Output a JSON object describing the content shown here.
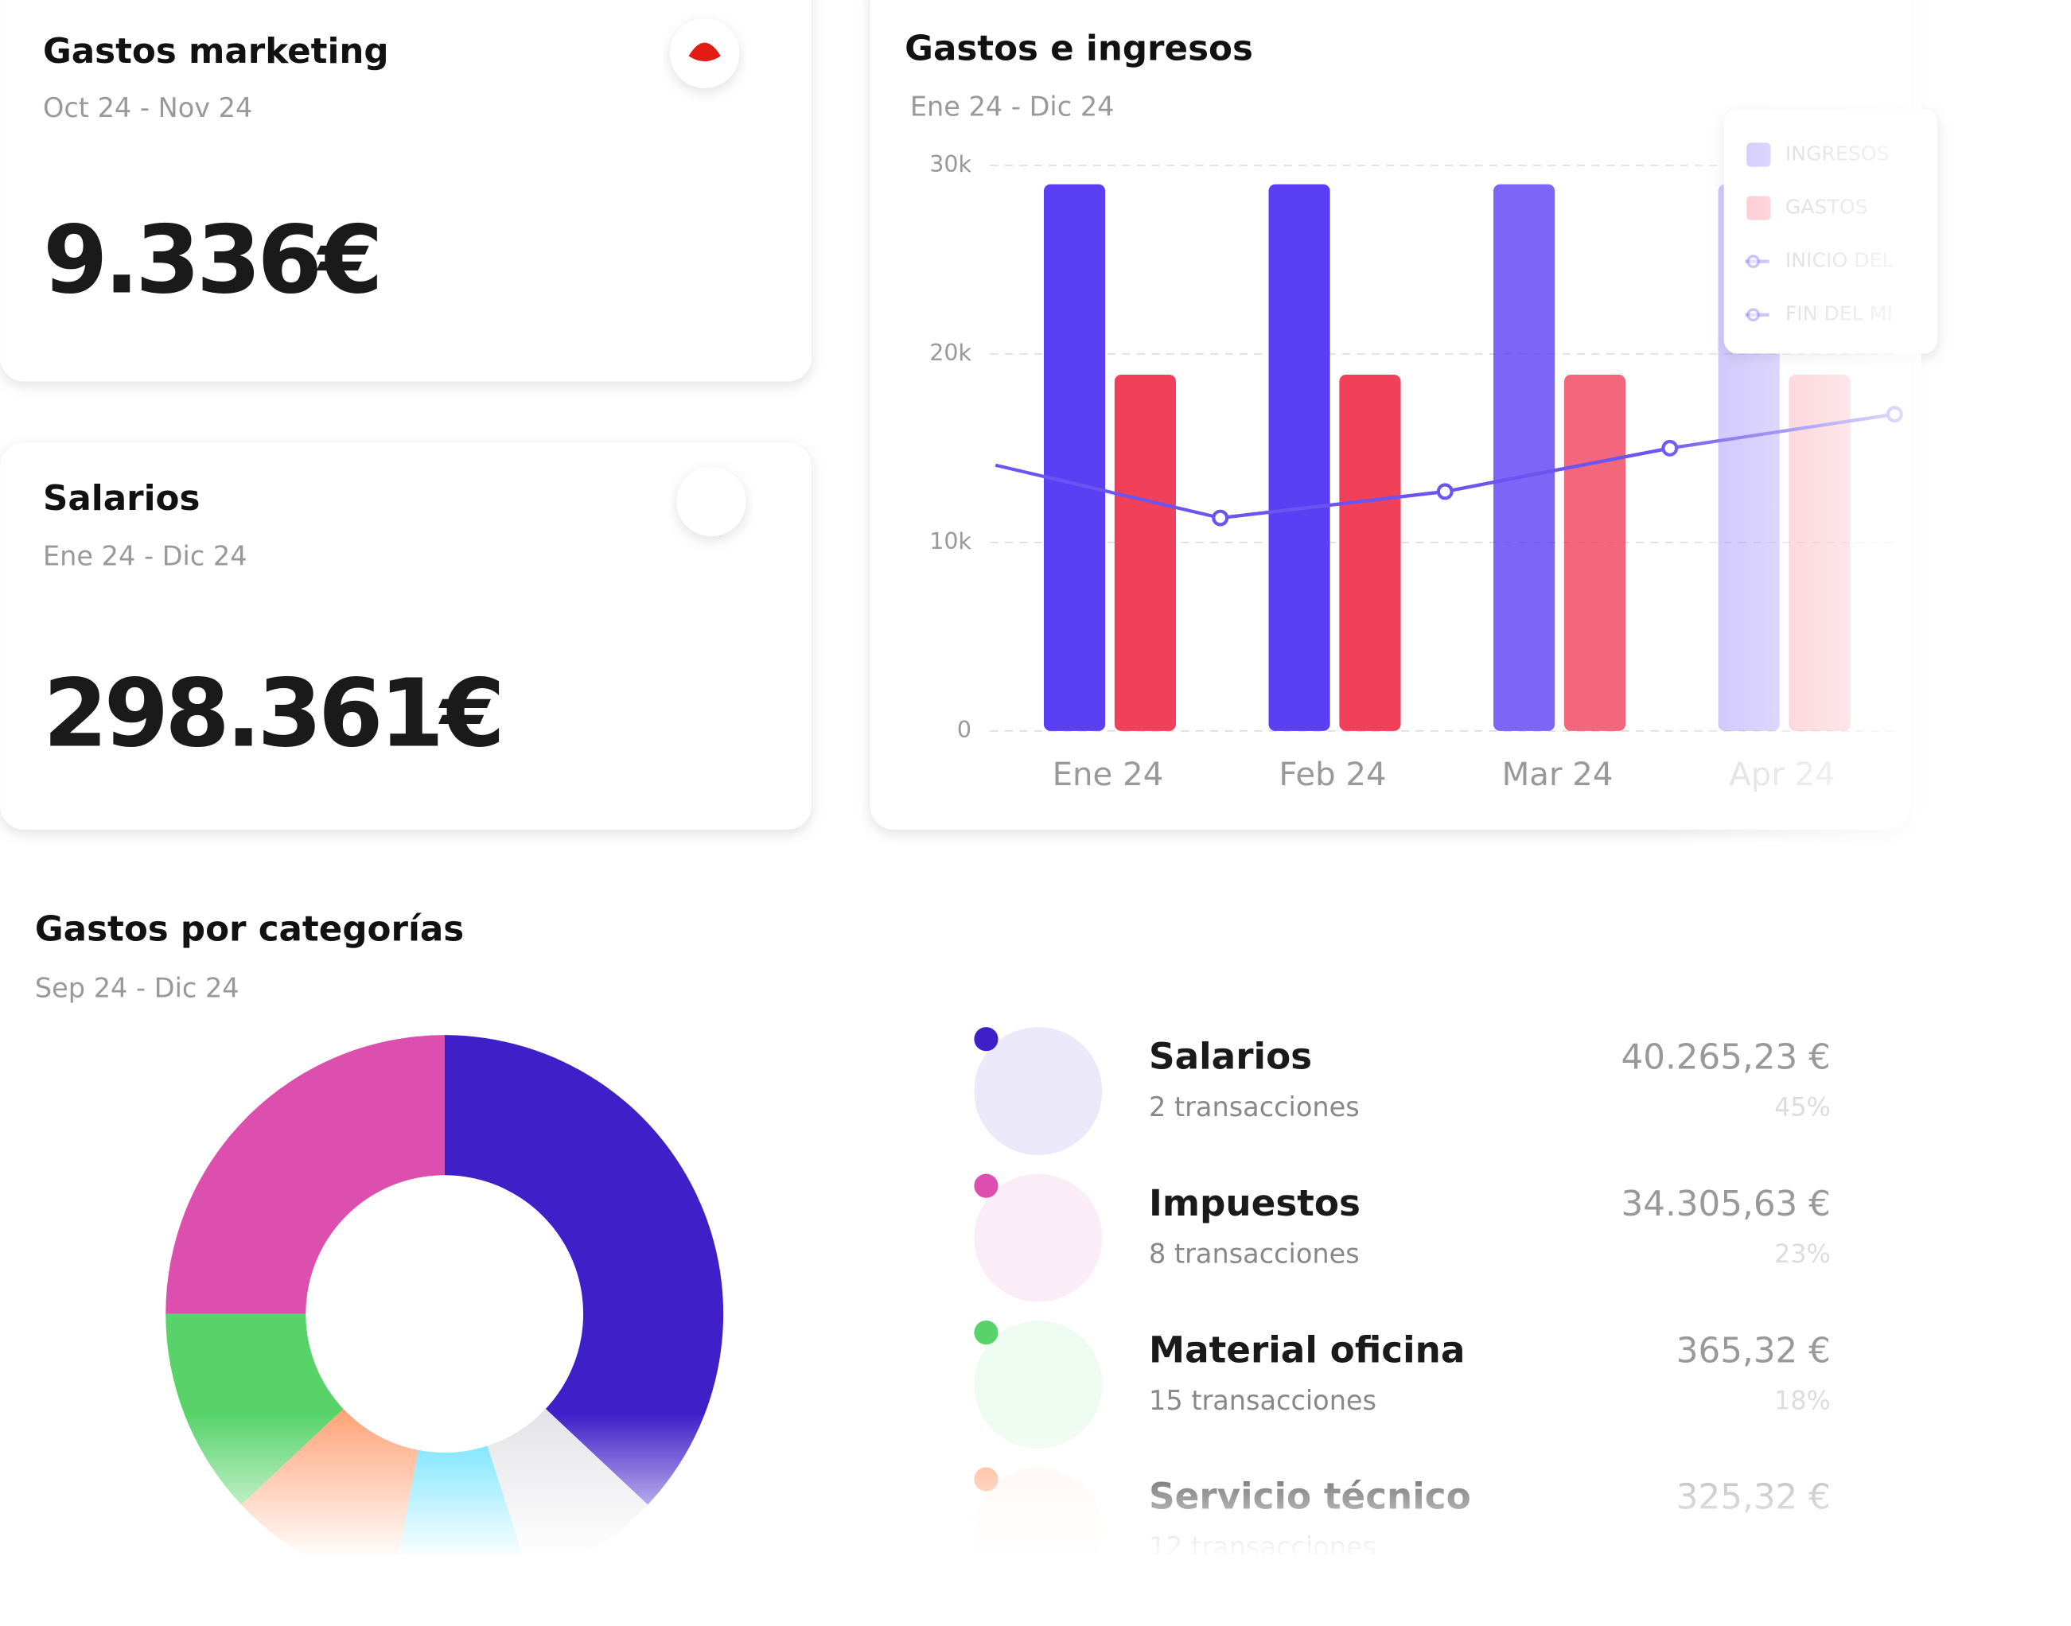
{
  "cards": [
    {
      "title": "Gastos marketing",
      "period": "Oct 24 -  Nov 24",
      "amount": "9.336€"
    },
    {
      "title": "Salarios",
      "period": "Ene 24 -  Dic 24",
      "amount": "298.361€"
    }
  ],
  "categories_panel": {
    "title": "Gastos por categorías",
    "period": "Sep 24 -  Dic 24",
    "items": [
      {
        "name": "Salarios",
        "transactions": "2 transacciones",
        "amount": "40.265,23 €",
        "share": "45%",
        "color": "#3f20c8"
      },
      {
        "name": "Impuestos",
        "transactions": "8 transacciones",
        "amount": "34.305,63 €",
        "share": "23%",
        "color": "#dc4fae"
      },
      {
        "name": "Material oficina",
        "transactions": "15 transacciones",
        "amount": "365,32 €",
        "share": "18%",
        "color": "#57d36a"
      },
      {
        "name": "Servicio técnico",
        "transactions": "12 transacciones",
        "amount": "325,32 €",
        "color": "#ffa57a"
      }
    ]
  },
  "chart_data": [
    {
      "type": "bar",
      "title": "Gastos e ingresos",
      "subtitle": "Ene 24 -  Dic 24",
      "categories": [
        "Ene 24",
        "Feb 24",
        "Mar 24",
        "Apr 24"
      ],
      "series": [
        {
          "name": "INGRESOS",
          "color": "#5b3ff5",
          "values": [
            29000,
            29000,
            29000,
            29000
          ]
        },
        {
          "name": "GASTOS",
          "color": "#f0405a",
          "values": [
            18900,
            18900,
            18900,
            18900
          ]
        },
        {
          "name": "INICIO DEL",
          "type": "line",
          "color": "#6a55f0",
          "values": [
            14100,
            11300,
            12700,
            15000
          ]
        },
        {
          "name": "FIN DEL MI",
          "type": "line",
          "color": "#6a55f0",
          "values": [
            11300,
            12700,
            15000,
            16800
          ]
        }
      ],
      "ylim": [
        0,
        30000
      ],
      "yticks": [
        0,
        {
          "value": 10000,
          "label": "10k"
        },
        {
          "value": 20000,
          "label": "20k"
        },
        {
          "value": 30000,
          "label": "30k"
        }
      ],
      "grid": true,
      "legend": "top-right"
    },
    {
      "type": "pie",
      "donut": true,
      "values": [
        37,
        8,
        8,
        10,
        12,
        25
      ],
      "colors": [
        "#3f20c8",
        "#e4e4e8",
        "#62e0ff",
        "#ffa57a",
        "#57d36a",
        "#dc4fae"
      ]
    }
  ]
}
